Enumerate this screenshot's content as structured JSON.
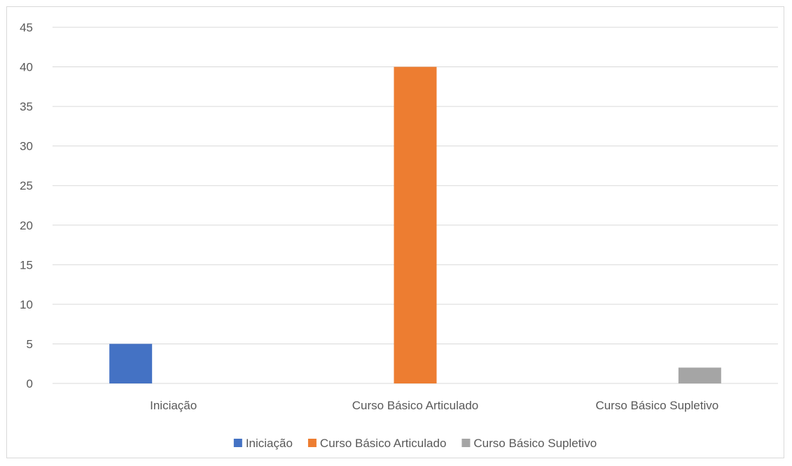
{
  "chart_data": {
    "type": "bar",
    "categories": [
      "Iniciação",
      "Curso Básico Articulado",
      "Curso Básico Supletivo"
    ],
    "series": [
      {
        "name": "Iniciação",
        "values": [
          5,
          0,
          0
        ],
        "color": "#4472c4"
      },
      {
        "name": "Curso Básico Articulado",
        "values": [
          0,
          40,
          0
        ],
        "color": "#ed7d31"
      },
      {
        "name": "Curso Básico Supletivo",
        "values": [
          0,
          0,
          2
        ],
        "color": "#a5a5a5"
      }
    ],
    "yticks": [
      "0",
      "5",
      "10",
      "15",
      "20",
      "25",
      "30",
      "35",
      "40",
      "45"
    ],
    "ylim": [
      0,
      45
    ],
    "grid": true,
    "legend_position": "bottom",
    "title": "",
    "xlabel": "",
    "ylabel": ""
  }
}
